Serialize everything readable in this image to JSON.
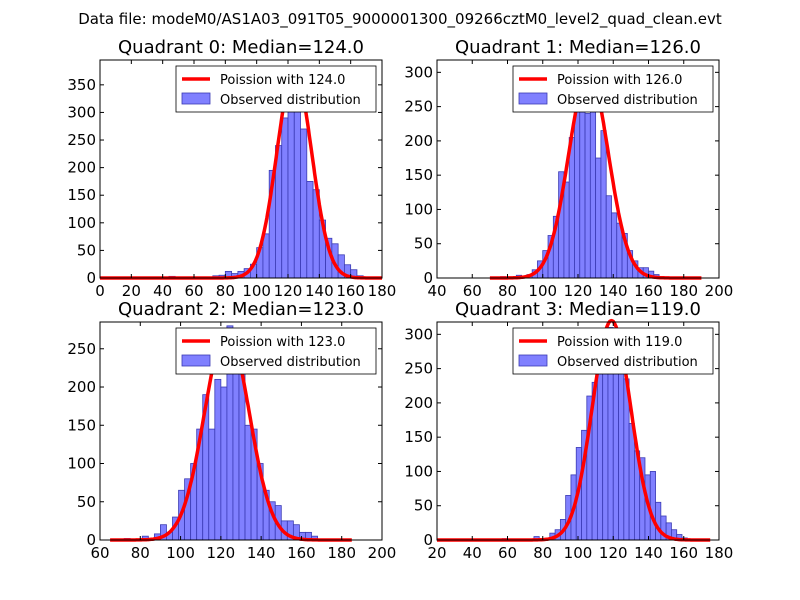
{
  "figure": {
    "suptitle": "Data file: modeM0/AS1A03_091T05_9000001300_09266cztM0_level2_quad_clean.evt"
  },
  "colors": {
    "bar_fill": "#8080ff",
    "bar_edge": "#3a3ab4",
    "curve": "#ff0000",
    "axes": "#000000"
  },
  "chart_data": [
    {
      "type": "bar+line",
      "title": "Quadrant 0: Median=124.0",
      "xlim": [
        0,
        180
      ],
      "ylim": [
        0,
        395
      ],
      "xticks": [
        0,
        20,
        40,
        60,
        80,
        100,
        120,
        140,
        160,
        180
      ],
      "yticks": [
        0,
        50,
        100,
        150,
        200,
        250,
        300,
        350
      ],
      "legend": {
        "position": "top-right",
        "line_label": "Poission with 124.0",
        "bar_label": "Observed distribution"
      },
      "bin_width": 4,
      "bin_starts": [
        44,
        56,
        64,
        72,
        76,
        80,
        84,
        88,
        92,
        96,
        100,
        104,
        108,
        112,
        116,
        120,
        124,
        128,
        132,
        136,
        140,
        144,
        148,
        152,
        156,
        160,
        164,
        168
      ],
      "counts": [
        3,
        2,
        2,
        4,
        5,
        12,
        8,
        12,
        17,
        25,
        55,
        80,
        195,
        240,
        290,
        375,
        315,
        270,
        175,
        160,
        105,
        72,
        62,
        42,
        24,
        15,
        4,
        2
      ],
      "curve": {
        "mean": 124.0,
        "peak": 375,
        "x_range": [
          0,
          180
        ]
      }
    },
    {
      "type": "bar+line",
      "title": "Quadrant 1: Median=126.0",
      "xlim": [
        40,
        200
      ],
      "ylim": [
        0,
        318
      ],
      "xticks": [
        40,
        60,
        80,
        100,
        120,
        140,
        160,
        180,
        200
      ],
      "yticks": [
        0,
        50,
        100,
        150,
        200,
        250,
        300
      ],
      "legend": {
        "position": "top-right",
        "line_label": "Poission with 126.0",
        "bar_label": "Observed distribution"
      },
      "bin_width": 3,
      "bin_starts": [
        76,
        85,
        91,
        94,
        97,
        100,
        103,
        106,
        109,
        112,
        115,
        118,
        121,
        124,
        127,
        130,
        133,
        136,
        139,
        142,
        145,
        148,
        151,
        154,
        157,
        160,
        163,
        166
      ],
      "counts": [
        2,
        4,
        5,
        12,
        25,
        40,
        62,
        90,
        155,
        140,
        205,
        280,
        300,
        240,
        255,
        175,
        215,
        120,
        95,
        80,
        65,
        40,
        25,
        15,
        15,
        10,
        5,
        2
      ],
      "curve": {
        "mean": 126.0,
        "peak": 300,
        "x_range": [
          70,
          190
        ]
      }
    },
    {
      "type": "bar+line",
      "title": "Quadrant 2: Median=123.0",
      "xlim": [
        60,
        200
      ],
      "ylim": [
        0,
        285
      ],
      "xticks": [
        60,
        80,
        100,
        120,
        140,
        160,
        180,
        200
      ],
      "yticks": [
        0,
        50,
        100,
        150,
        200,
        250
      ],
      "legend": {
        "position": "top-right",
        "line_label": "Poission with 123.0",
        "bar_label": "Observed distribution"
      },
      "bin_width": 3,
      "bin_starts": [
        72,
        81,
        87,
        90,
        93,
        96,
        99,
        102,
        105,
        108,
        111,
        114,
        117,
        120,
        123,
        126,
        129,
        132,
        135,
        138,
        141,
        144,
        147,
        150,
        153,
        156,
        159,
        162,
        165
      ],
      "counts": [
        2,
        5,
        8,
        20,
        10,
        30,
        65,
        80,
        100,
        145,
        190,
        145,
        210,
        200,
        280,
        235,
        255,
        150,
        145,
        100,
        65,
        50,
        45,
        25,
        25,
        20,
        10,
        10,
        5
      ],
      "curve": {
        "mean": 123.0,
        "peak": 275,
        "x_range": [
          65,
          185
        ]
      }
    },
    {
      "type": "bar+line",
      "title": "Quadrant 3: Median=119.0",
      "xlim": [
        20,
        180
      ],
      "ylim": [
        0,
        318
      ],
      "xticks": [
        20,
        40,
        60,
        80,
        100,
        120,
        140,
        160,
        180
      ],
      "yticks": [
        0,
        50,
        100,
        150,
        200,
        250,
        300
      ],
      "legend": {
        "position": "top-right",
        "line_label": "Poission with 119.0",
        "bar_label": "Observed distribution"
      },
      "bin_width": 3,
      "bin_starts": [
        57,
        75,
        84,
        87,
        90,
        93,
        96,
        99,
        102,
        105,
        108,
        111,
        114,
        117,
        120,
        123,
        126,
        129,
        132,
        135,
        138,
        141,
        144,
        147,
        150,
        153,
        156,
        159
      ],
      "counts": [
        2,
        5,
        10,
        15,
        30,
        65,
        95,
        135,
        160,
        210,
        230,
        265,
        305,
        310,
        300,
        255,
        235,
        170,
        130,
        120,
        95,
        100,
        55,
        35,
        25,
        15,
        8,
        3
      ],
      "curve": {
        "mean": 119.0,
        "peak": 320,
        "x_range": [
          20,
          175
        ]
      }
    }
  ]
}
